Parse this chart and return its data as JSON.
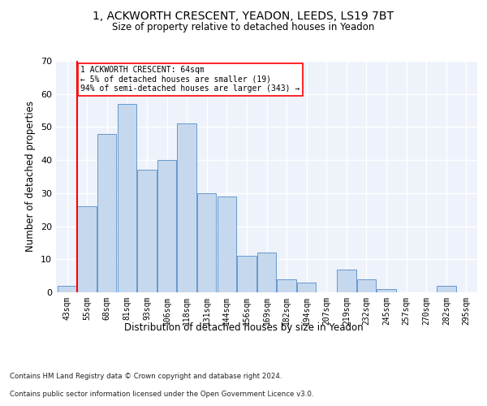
{
  "title_line1": "1, ACKWORTH CRESCENT, YEADON, LEEDS, LS19 7BT",
  "title_line2": "Size of property relative to detached houses in Yeadon",
  "xlabel": "Distribution of detached houses by size in Yeadon",
  "ylabel": "Number of detached properties",
  "bins": [
    "43sqm",
    "55sqm",
    "68sqm",
    "81sqm",
    "93sqm",
    "106sqm",
    "118sqm",
    "131sqm",
    "144sqm",
    "156sqm",
    "169sqm",
    "182sqm",
    "194sqm",
    "207sqm",
    "219sqm",
    "232sqm",
    "245sqm",
    "257sqm",
    "270sqm",
    "282sqm",
    "295sqm"
  ],
  "values": [
    2,
    26,
    48,
    57,
    37,
    40,
    51,
    30,
    29,
    11,
    12,
    4,
    3,
    0,
    7,
    4,
    1,
    0,
    0,
    2,
    0
  ],
  "bar_color": "#c5d8ee",
  "bar_edge_color": "#6699cc",
  "annotation_text": "1 ACKWORTH CRESCENT: 64sqm\n← 5% of detached houses are smaller (19)\n94% of semi-detached houses are larger (343) →",
  "ylim": [
    0,
    70
  ],
  "yticks": [
    0,
    10,
    20,
    30,
    40,
    50,
    60,
    70
  ],
  "footer_line1": "Contains HM Land Registry data © Crown copyright and database right 2024.",
  "footer_line2": "Contains public sector information licensed under the Open Government Licence v3.0.",
  "background_color": "#eef2fb",
  "grid_color": "#ffffff",
  "fig_background": "#ffffff",
  "red_line_xindex": 0.52
}
